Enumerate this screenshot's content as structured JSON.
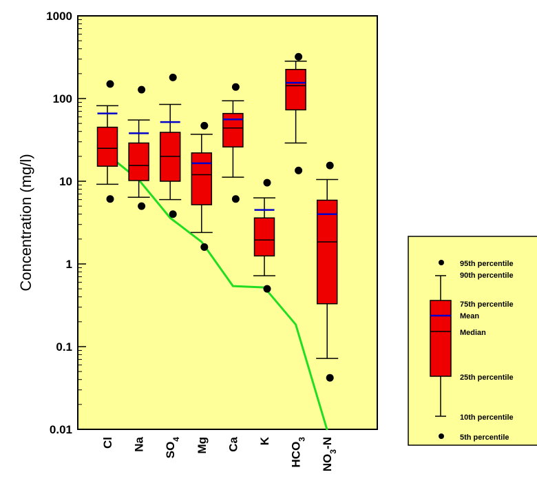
{
  "chart_data": {
    "type": "boxplot",
    "ylabel": "Concentration  (mg/l)",
    "yscale": "log",
    "ylim": [
      0.01,
      1000
    ],
    "yticks": [
      {
        "value": 1000,
        "label": "1000"
      },
      {
        "value": 100,
        "label": "100"
      },
      {
        "value": 10,
        "label": "10"
      },
      {
        "value": 1,
        "label": "1"
      },
      {
        "value": 0.1,
        "label": "0.1"
      },
      {
        "value": 0.01,
        "label": "0.01"
      }
    ],
    "categories": [
      {
        "label": "Cl",
        "sub": "",
        "tail": ""
      },
      {
        "label": "Na",
        "sub": "",
        "tail": ""
      },
      {
        "label": "SO",
        "sub": "4",
        "tail": ""
      },
      {
        "label": "Mg",
        "sub": "",
        "tail": ""
      },
      {
        "label": "Ca",
        "sub": "",
        "tail": ""
      },
      {
        "label": "K",
        "sub": "",
        "tail": ""
      },
      {
        "label": "HCO",
        "sub": "3",
        "tail": ""
      },
      {
        "label": "NO",
        "sub": "3",
        "tail": "-N"
      }
    ],
    "boxes": [
      {
        "p5": 6.1,
        "p10": 9.2,
        "q1": 15.2,
        "median": 25,
        "q3": 45,
        "p90": 82,
        "p95": 150,
        "mean": 66
      },
      {
        "p5": 5.0,
        "p10": 6.4,
        "q1": 10.2,
        "median": 15.5,
        "q3": 29,
        "p90": 55,
        "p95": 128,
        "mean": 38
      },
      {
        "p5": 4.0,
        "p10": 6.0,
        "q1": 10.0,
        "median": 20,
        "q3": 39,
        "p90": 85,
        "p95": 180,
        "mean": 52
      },
      {
        "p5": 1.6,
        "p10": 2.4,
        "q1": 5.2,
        "median": 12,
        "q3": 22,
        "p90": 37,
        "p95": 47,
        "mean": 16.5
      },
      {
        "p5": 6.1,
        "p10": 11.2,
        "q1": 26,
        "median": 44,
        "q3": 66,
        "p90": 94,
        "p95": 138,
        "mean": 56
      },
      {
        "p5": 0.5,
        "p10": 0.72,
        "q1": 1.25,
        "median": 1.95,
        "q3": 3.6,
        "p90": 6.3,
        "p95": 9.6,
        "mean": 4.5
      },
      {
        "p5": 13.5,
        "p10": 29,
        "q1": 73,
        "median": 143,
        "q3": 225,
        "p90": 283,
        "p95": 320,
        "mean": 155
      },
      {
        "p5": 0.042,
        "p10": 0.072,
        "q1": 0.33,
        "median": 1.85,
        "q3": 5.9,
        "p90": 10.5,
        "p95": 15.5,
        "mean": 4.0
      }
    ],
    "line": {
      "color": "#22dd22",
      "points": [
        {
          "x": "Cl",
          "y": 21
        },
        {
          "x": "Na",
          "y": 10.4
        },
        {
          "x": "SO",
          "y": 3.6
        },
        {
          "x": "Mg",
          "y": 1.85
        },
        {
          "x": "Ca",
          "y": 0.54
        },
        {
          "x": "K",
          "y": 0.52
        },
        {
          "x": "HCO",
          "y": 0.185
        },
        {
          "x": "NO",
          "y": 0.0098
        }
      ]
    },
    "legend": {
      "position": "right",
      "items": {
        "p95": "95th percentile",
        "p90": "90th percentile",
        "q3": "75th percentile",
        "mean": "Mean",
        "median": "Median",
        "q1": "25th percentile",
        "p10": "10th percentile",
        "p5": "5th percentile"
      }
    },
    "colors": {
      "plot_bg": "#ffff99",
      "box_fill": "#ee0000",
      "mean_line": "#0000cc",
      "outlier": "#000000"
    }
  }
}
